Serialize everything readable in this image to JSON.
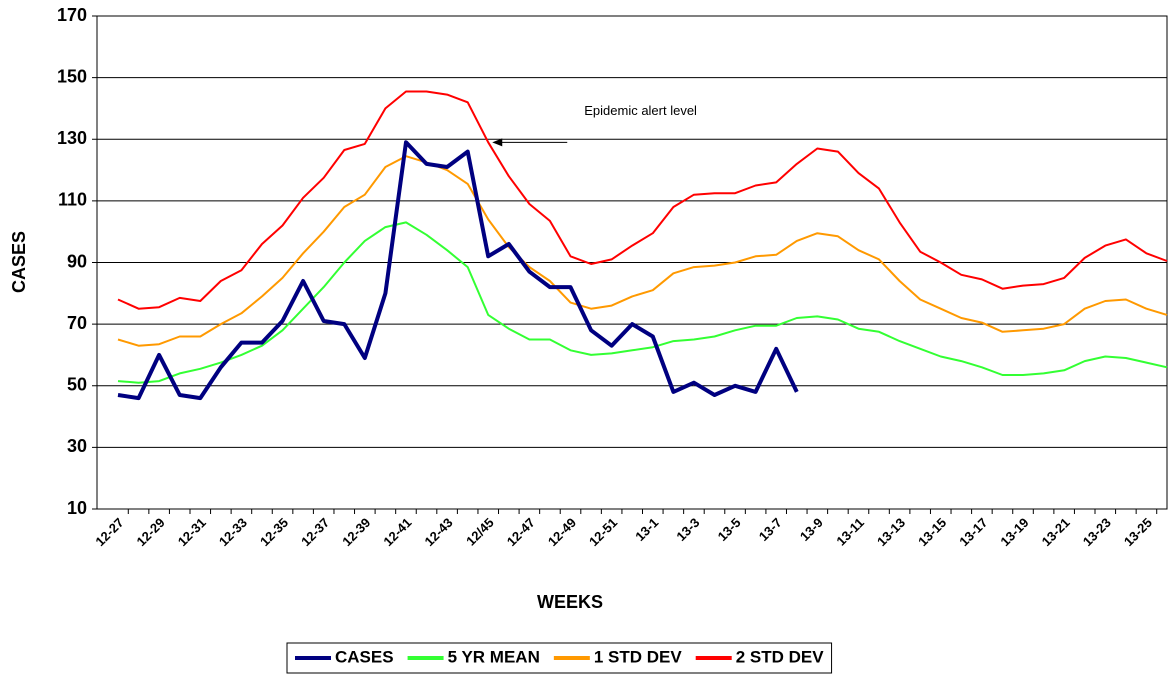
{
  "chart_data": {
    "type": "line",
    "categories": [
      "12-27",
      null,
      "12-29",
      null,
      "12-31",
      null,
      "12-33",
      null,
      "12-35",
      null,
      "12-37",
      null,
      "12-39",
      null,
      "12-41",
      null,
      "12-43",
      null,
      "12/45",
      null,
      "12-47",
      null,
      "12-49",
      null,
      "12-51",
      null,
      "13-1",
      null,
      "13-3",
      null,
      "13-5",
      null,
      "13-7",
      null,
      "13-9",
      null,
      "13-11",
      null,
      "13-13",
      null,
      "13-15",
      null,
      "13-17",
      null,
      "13-19",
      null,
      "13-21",
      null,
      "13-23",
      null,
      "13-25",
      null
    ],
    "series": [
      {
        "name": "CASES",
        "color": "#000080",
        "values": [
          47,
          46,
          60,
          47,
          46,
          56,
          64,
          64,
          71,
          84,
          71,
          70,
          59,
          80,
          129,
          122,
          121,
          126,
          92,
          96,
          87,
          82,
          82,
          68,
          63,
          70,
          66,
          48,
          51,
          47,
          50,
          48,
          62,
          48,
          null,
          null,
          null,
          null,
          null,
          null,
          null,
          null,
          null,
          null,
          null,
          null,
          null,
          null,
          null,
          null,
          null,
          null
        ]
      },
      {
        "name": "5 YR MEAN",
        "color": "#33ff33",
        "values": [
          51.5,
          51,
          51.5,
          54,
          55.5,
          57.5,
          60,
          63,
          68,
          75,
          82,
          90,
          97,
          101.5,
          103,
          99,
          94,
          88.5,
          73,
          68.5,
          65,
          65,
          61.5,
          60,
          60.5,
          61.5,
          62.5,
          64.5,
          65,
          66,
          68,
          69.5,
          69.5,
          72,
          72.5,
          71.5,
          68.5,
          67.5,
          64.5,
          62,
          59.5,
          58,
          56,
          53.5,
          53.5,
          54,
          55,
          58,
          59.5,
          59,
          57.5,
          56
        ]
      },
      {
        "name": "1 STD DEV",
        "color": "#ff9900",
        "values": [
          65,
          63,
          63.5,
          66,
          66,
          70,
          73.5,
          79,
          85,
          93,
          100,
          108,
          112,
          121,
          124.5,
          122.5,
          120,
          115.5,
          104,
          95,
          88.5,
          84,
          77,
          75,
          76,
          79,
          81,
          86.5,
          88.5,
          89,
          90,
          92,
          92.5,
          97,
          99.5,
          98.5,
          94,
          91,
          84,
          78,
          75,
          72,
          70.5,
          67.5,
          68,
          68.5,
          70,
          75,
          77.5,
          78,
          75,
          73
        ]
      },
      {
        "name": "2 STD DEV",
        "color": "#ff0000",
        "values": [
          78,
          75,
          75.5,
          78.5,
          77.5,
          84,
          87.5,
          96,
          102,
          111,
          117.5,
          126.5,
          128.5,
          140,
          145.5,
          145.5,
          144.5,
          142,
          129,
          118,
          109,
          103.5,
          92,
          89.5,
          91,
          95.5,
          99.5,
          108,
          112,
          112.5,
          112.5,
          115,
          116,
          122,
          127,
          126,
          119,
          114,
          103,
          93.5,
          90,
          86,
          84.5,
          81.5,
          82.5,
          83,
          85,
          91.5,
          95.5,
          97.5,
          93,
          90.5
        ]
      }
    ],
    "ylim": [
      10,
      170
    ],
    "yticks": [
      10,
      30,
      50,
      70,
      90,
      110,
      130,
      150,
      170
    ],
    "grid": true,
    "xlabel": "WEEKS",
    "ylabel": "CASES",
    "annotation": {
      "text": "Epidemic alert  level",
      "index": 18,
      "series": 3
    },
    "legend": "bottom"
  }
}
